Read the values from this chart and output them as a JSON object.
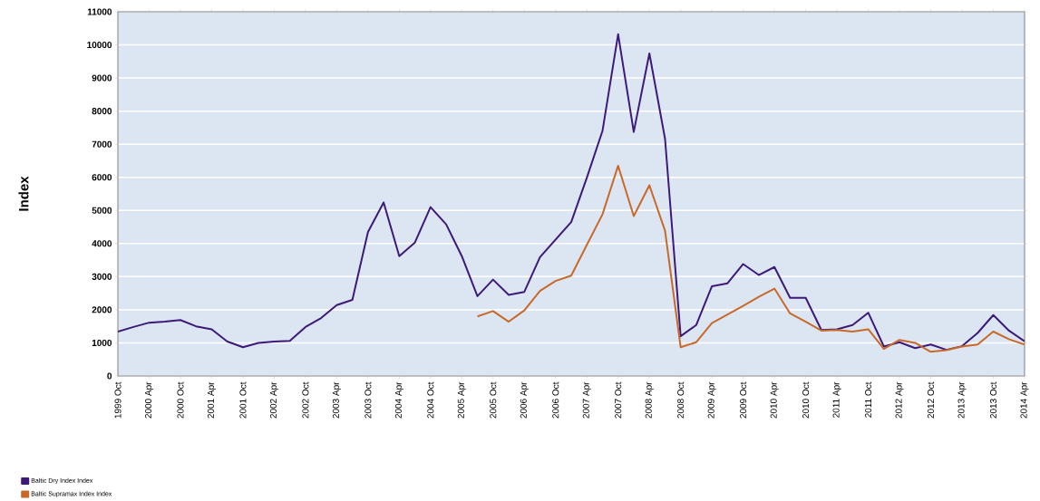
{
  "chart_data": {
    "type": "line",
    "ylabel": "Index",
    "categories": [
      "1999 Oct",
      null,
      "2000 Apr",
      null,
      "2000 Oct",
      null,
      "2001 Apr",
      null,
      "2001 Oct",
      null,
      "2002 Apr",
      null,
      "2002 Oct",
      null,
      "2003 Apr",
      null,
      "2003 Oct",
      null,
      "2004 Apr",
      null,
      "2004 Oct",
      null,
      "2005 Apr",
      null,
      "2005 Oct",
      null,
      "2006 Apr",
      null,
      "2006 Oct",
      null,
      "2007 Apr",
      null,
      "2007 Oct",
      null,
      "2008 Apr",
      null,
      "2008 Oct",
      null,
      "2009 Apr",
      null,
      "2009 Oct",
      null,
      "2010 Apr",
      null,
      "2010 Oct",
      null,
      "2011 Apr",
      null,
      "2011 Oct",
      null,
      "2012 Apr",
      null,
      "2012 Oct",
      null,
      "2013 Apr",
      null,
      "2013 Oct",
      null,
      "2014 Apr"
    ],
    "series": [
      {
        "name": "Baltic Dry Index Index",
        "color": "#3d1a78",
        "values": [
          1340,
          1480,
          1610,
          1640,
          1690,
          1500,
          1410,
          1040,
          870,
          1000,
          1040,
          1060,
          1480,
          1750,
          2140,
          2300,
          4350,
          5240,
          3620,
          4030,
          5100,
          4580,
          3620,
          2410,
          2910,
          2450,
          2540,
          3590,
          4120,
          4650,
          5990,
          7400,
          10320,
          7370,
          9740,
          7170,
          1200,
          1540,
          2710,
          2800,
          3380,
          3050,
          3290,
          2360,
          2360,
          1390,
          1410,
          1540,
          1910,
          890,
          1020,
          840,
          950,
          790,
          900,
          1300,
          1840,
          1370,
          1050
        ]
      },
      {
        "name": "Baltic Supramax Index Index",
        "color": "#c8692a",
        "values": [
          null,
          null,
          null,
          null,
          null,
          null,
          null,
          null,
          null,
          null,
          null,
          null,
          null,
          null,
          null,
          null,
          null,
          null,
          null,
          null,
          null,
          null,
          null,
          1800,
          1960,
          1640,
          1980,
          2570,
          2870,
          3030,
          3960,
          4880,
          6350,
          4830,
          5760,
          4390,
          870,
          1020,
          1600,
          1860,
          2120,
          2390,
          2640,
          1890,
          1640,
          1370,
          1390,
          1340,
          1410,
          820,
          1090,
          1000,
          730,
          780,
          890,
          950,
          1340,
          1110,
          950
        ]
      }
    ],
    "ylim": [
      0,
      11000
    ],
    "yticks": [
      0,
      1000,
      2000,
      3000,
      4000,
      5000,
      6000,
      7000,
      8000,
      9000,
      10000,
      11000
    ],
    "grid": "y",
    "legend": "bottom left",
    "line_style": "solid"
  }
}
